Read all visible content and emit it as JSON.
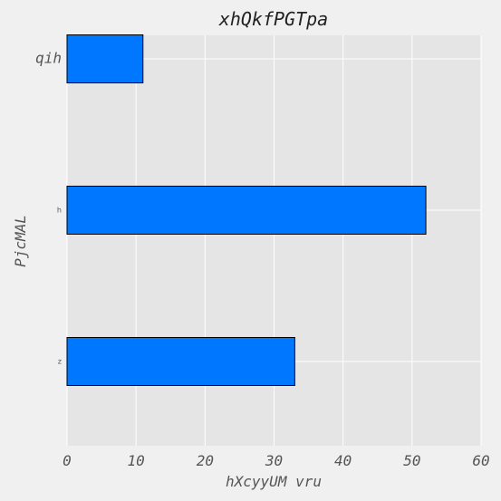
{
  "chart_data": {
    "type": "bar",
    "orientation": "horizontal",
    "title": "xhQkfPGTpa",
    "xlabel": "hXcyyUM vru",
    "ylabel": "PjcMAL",
    "categories": [
      "qih",
      "h",
      "z"
    ],
    "values": [
      11,
      52,
      33
    ],
    "xlim": [
      0,
      60
    ],
    "xticks": [
      "0",
      "10",
      "20",
      "30",
      "40",
      "50",
      "60"
    ],
    "grid": true,
    "bar_color": "#0077ff",
    "bar_edge_color": "#000000",
    "background_color": "#e5e5e5",
    "figure_color": "#f0f0f0"
  }
}
